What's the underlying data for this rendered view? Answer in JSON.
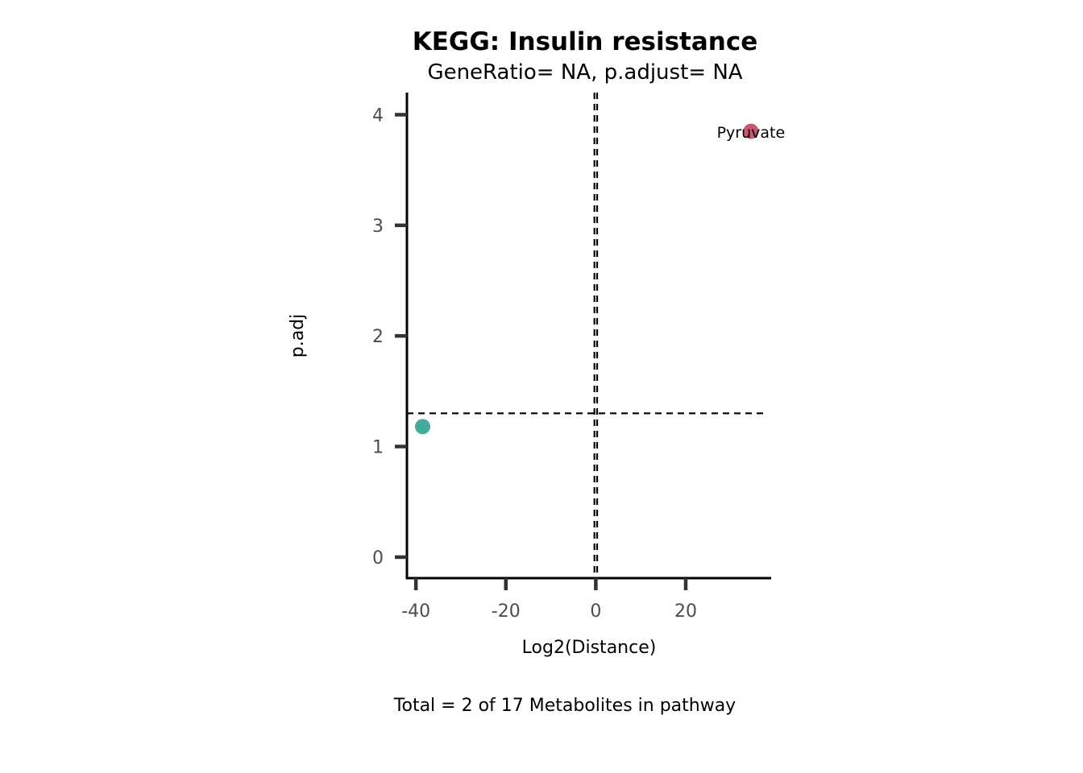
{
  "chart_data": {
    "type": "scatter",
    "title": "KEGG: Insulin resistance",
    "subtitle": "GeneRatio= NA, p.adjust= NA",
    "xlabel": "Log2(Distance)",
    "ylabel": "p.adj",
    "caption": "Total = 2 of 17 Metabolites in pathway",
    "xlim": [
      -42,
      39
    ],
    "ylim": [
      -0.19,
      4.2
    ],
    "x_ticks": [
      -40,
      -20,
      0,
      20
    ],
    "x_tick_labels": [
      "-40",
      "-20",
      "0",
      "20"
    ],
    "y_ticks": [
      0,
      1,
      2,
      3,
      4
    ],
    "y_tick_labels": [
      "0",
      "1",
      "2",
      "3",
      "4"
    ],
    "grid": false,
    "reference_lines": {
      "vertical": [
        -0.3,
        0.3
      ],
      "horizontal": [
        1.3
      ],
      "style": "dashed"
    },
    "points": [
      {
        "x": -38.5,
        "y": 1.18,
        "color": "#45A99B",
        "label": ""
      },
      {
        "x": 34.5,
        "y": 3.85,
        "color": "#C6586F",
        "label": "Pyruvate"
      }
    ]
  }
}
